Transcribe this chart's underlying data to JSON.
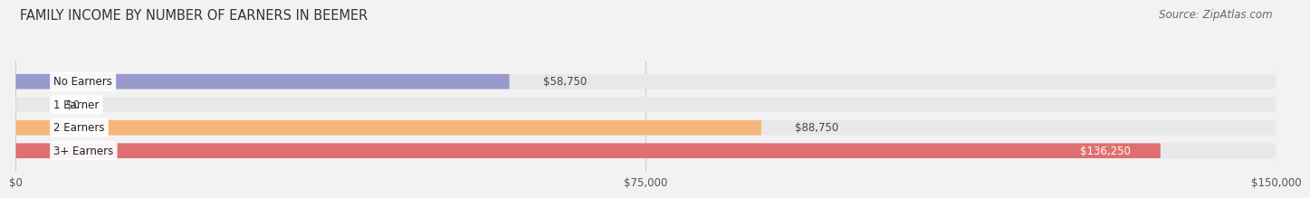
{
  "title": "FAMILY INCOME BY NUMBER OF EARNERS IN BEEMER",
  "source": "Source: ZipAtlas.com",
  "categories": [
    "No Earners",
    "1 Earner",
    "2 Earners",
    "3+ Earners"
  ],
  "values": [
    58750,
    0,
    88750,
    136250
  ],
  "bar_colors": [
    "#9999cc",
    "#f2a0b0",
    "#f5b87a",
    "#e07070"
  ],
  "value_labels": [
    "$58,750",
    "$0",
    "$88,750",
    "$136,250"
  ],
  "value_label_inside": [
    false,
    false,
    false,
    true
  ],
  "xlim": [
    0,
    150000
  ],
  "xticks": [
    0,
    75000,
    150000
  ],
  "xtick_labels": [
    "$0",
    "$75,000",
    "$150,000"
  ],
  "background_color": "#f2f2f2",
  "bar_background_color": "#e8e8e8",
  "title_fontsize": 10.5,
  "source_fontsize": 8.5,
  "bar_height": 0.65,
  "bar_gap": 0.35
}
